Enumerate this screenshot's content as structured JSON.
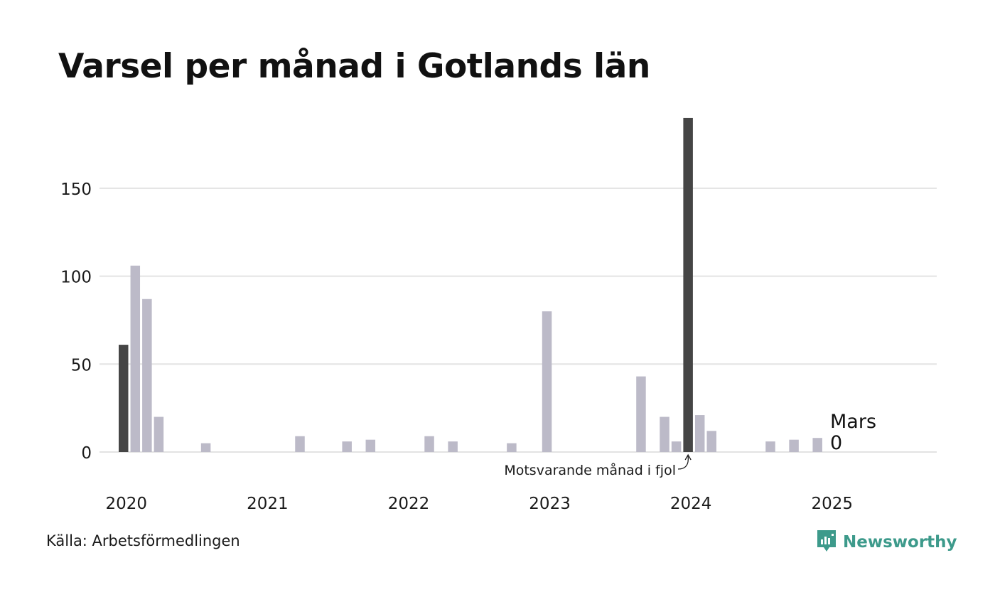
{
  "title": "Varsel per månad i Gotlands län",
  "source": "Källa: Arbetsförmedlingen",
  "brand": {
    "name": "Newsworthy",
    "icon": "newsworthy-logo-icon",
    "color": "#3d9a8b"
  },
  "chart_data": {
    "type": "bar",
    "title": "Varsel per månad i Gotlands län",
    "xlabel": "",
    "ylabel": "",
    "ylim": [
      0,
      190
    ],
    "yticks": [
      0,
      50,
      100,
      150
    ],
    "grid": true,
    "x_tick_labels": [
      "2020",
      "2021",
      "2022",
      "2023",
      "2024",
      "2025"
    ],
    "series": [
      {
        "x": [
          "2020-03",
          "2020-04",
          "2020-05",
          "2020-06",
          "2020-07",
          "2020-08",
          "2020-09",
          "2020-10",
          "2020-11",
          "2020-12",
          "2021-01",
          "2021-02",
          "2021-03",
          "2021-04",
          "2021-05",
          "2021-06",
          "2021-07",
          "2021-08",
          "2021-09",
          "2021-10",
          "2021-11",
          "2021-12",
          "2022-01",
          "2022-02",
          "2022-03",
          "2022-04",
          "2022-05",
          "2022-06",
          "2022-07",
          "2022-08",
          "2022-09",
          "2022-10",
          "2022-11",
          "2022-12",
          "2023-01",
          "2023-02",
          "2023-03",
          "2023-04",
          "2023-05",
          "2023-06",
          "2023-07",
          "2023-08",
          "2023-09",
          "2023-10",
          "2023-11",
          "2023-12",
          "2024-01",
          "2024-02",
          "2024-03",
          "2024-04",
          "2024-05",
          "2024-06",
          "2024-07",
          "2024-08",
          "2024-09",
          "2024-10",
          "2024-11",
          "2024-12",
          "2025-01",
          "2025-02",
          "2025-03"
        ],
        "values": [
          61,
          106,
          87,
          20,
          0,
          0,
          0,
          5,
          0,
          0,
          0,
          0,
          0,
          0,
          0,
          9,
          0,
          0,
          0,
          6,
          0,
          7,
          0,
          0,
          0,
          0,
          9,
          0,
          6,
          0,
          0,
          0,
          0,
          5,
          0,
          0,
          80,
          0,
          0,
          0,
          0,
          0,
          0,
          0,
          43,
          0,
          20,
          6,
          190,
          21,
          12,
          0,
          0,
          0,
          0,
          6,
          0,
          7,
          0,
          8,
          0
        ]
      }
    ],
    "highlight": [
      "2020-03",
      "2024-03"
    ],
    "colors": {
      "bar": "#bcbac8",
      "highlight": "#454545",
      "grid": "#e3e3e3"
    },
    "annotations": [
      {
        "text": "Motsvarande månad i fjol",
        "x": "2024-03"
      },
      {
        "text": "Mars",
        "x": "2025-03"
      },
      {
        "text": "0",
        "x": "2025-03"
      }
    ]
  }
}
